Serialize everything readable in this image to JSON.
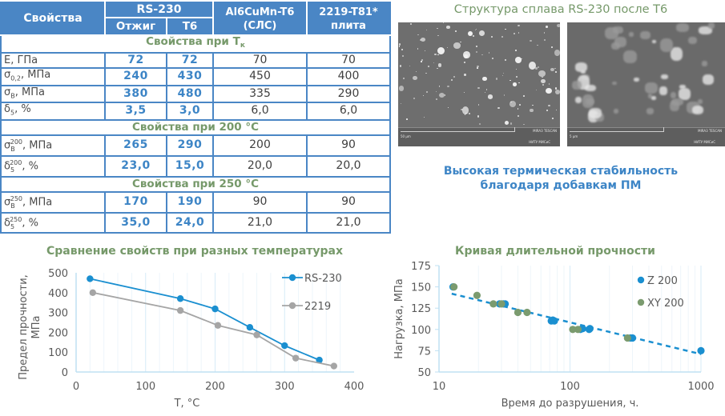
{
  "table": {
    "header": {
      "properties": "Свойства",
      "rs230": "RS-230",
      "annealed": "Отжиг",
      "t6": "Т6",
      "al6cumn_line1": "Al6CuMn-T6",
      "al6cumn_line2": "(СЛС)",
      "alloy2219_line1": "2219-T81*",
      "alloy2219_line2": "плита"
    },
    "sections": [
      {
        "title": "Свойства при T",
        "title_sub": "к",
        "rows": [
          {
            "label": "E, ГПа",
            "annealed": "72",
            "t6": "72",
            "al6cumn": "70",
            "a2219": "70"
          },
          {
            "sym": "σ",
            "sub": "0,2",
            "sup": "",
            "unit": ", МПа",
            "annealed": "240",
            "t6": "430",
            "al6cumn": "450",
            "a2219": "400"
          },
          {
            "sym": "σ",
            "sub": "В",
            "sup": "",
            "unit": ", МПа",
            "annealed": "380",
            "t6": "480",
            "al6cumn": "335",
            "a2219": "290"
          },
          {
            "sym": "δ",
            "sub": "5",
            "sup": "",
            "unit": ", %",
            "annealed": "3,5",
            "t6": "3,0",
            "al6cumn": "6,0",
            "a2219": "6,0"
          }
        ]
      },
      {
        "title": "Свойства при 200 °С",
        "rows": [
          {
            "sym": "σ",
            "sub": "В",
            "sup": "200",
            "unit": ", МПа",
            "annealed": "265",
            "t6": "290",
            "al6cumn": "200",
            "a2219": "90"
          },
          {
            "sym": "δ",
            "sub": "5",
            "sup": "200",
            "unit": ", %",
            "annealed": "23,0",
            "t6": "15,0",
            "al6cumn": "20,0",
            "a2219": "20,0"
          }
        ]
      },
      {
        "title": "Свойства при 250 °С",
        "rows": [
          {
            "sym": "σ",
            "sub": "В",
            "sup": "250",
            "unit": ", МПа",
            "annealed": "170",
            "t6": "190",
            "al6cumn": "90",
            "a2219": "90"
          },
          {
            "sym": "δ",
            "sub": "5",
            "sup": "250",
            "unit": ", %",
            "annealed": "35,0",
            "t6": "24,0",
            "al6cumn": "21,0",
            "a2219": "21,0"
          }
        ]
      }
    ]
  },
  "microstructure": {
    "title": "Структура сплава RS-230 после Т6",
    "image1": {
      "scale": "50 μm",
      "brand": "MIRA3 TESCAN",
      "org": "НИТУ МИСиС"
    },
    "image2": {
      "scale": "5 μm",
      "brand": "MIRA3 TESCAN",
      "org": "НИТУ МИСиС"
    }
  },
  "stability_text": {
    "line1": "Высокая термическая стабильность",
    "line2": "благодаря добавкам ПМ"
  },
  "colors": {
    "header_blue": "#4a86c5",
    "rs_blue": "#3d85c6",
    "section_green": "#76996a",
    "series_blue": "#1a8fd0",
    "series_gray": "#a5a5a5",
    "series_green": "#7b9b6f"
  },
  "chart_data": [
    {
      "type": "line",
      "title": "Сравнение свойств при разных температурах",
      "xlabel": "T, °C",
      "ylabel": "Предел прочности, МПа",
      "xlim": [
        0,
        400
      ],
      "ylim": [
        0,
        500
      ],
      "xticks": [
        0,
        100,
        200,
        300,
        400
      ],
      "yticks": [
        0,
        100,
        200,
        300,
        400,
        500
      ],
      "grid": "vertical minor",
      "legend_position": "upper right",
      "series": [
        {
          "name": "RS-230",
          "x": [
            20,
            150,
            200,
            250,
            300,
            350
          ],
          "y": [
            470,
            370,
            318,
            225,
            133,
            60
          ]
        },
        {
          "name": "2219",
          "x": [
            24,
            150,
            204,
            260,
            316,
            371
          ],
          "y": [
            400,
            310,
            235,
            187,
            70,
            30
          ]
        }
      ]
    },
    {
      "type": "scatter",
      "title": "Кривая длительной прочности",
      "xlabel": "Время до разрушения, ч.",
      "ylabel": "Нагрузка, МПа",
      "xscale": "log",
      "xlim": [
        10,
        1000
      ],
      "ylim": [
        50,
        175
      ],
      "xticks": [
        10,
        100,
        1000
      ],
      "yticks": [
        50,
        75,
        100,
        125,
        150,
        175
      ],
      "legend_position": "upper right",
      "series": [
        {
          "name": "Z 200",
          "x": [
            12.8,
            29,
            31,
            32,
            72,
            74,
            76,
            120,
            125,
            140,
            142,
            290,
            300,
            1000
          ],
          "y": [
            150,
            130,
            130,
            130,
            110,
            111,
            110,
            100,
            101,
            100,
            101,
            90,
            90,
            75
          ]
        },
        {
          "name": "XY 200",
          "x": [
            13,
            19.5,
            26,
            30,
            40,
            47,
            105,
            115,
            275
          ],
          "y": [
            150,
            140,
            130,
            130,
            120,
            120,
            100,
            100,
            90
          ]
        }
      ],
      "trendline": {
        "style": "dashed",
        "color": "#1a8fd0",
        "x": [
          12.5,
          1000
        ],
        "y": [
          142,
          71
        ]
      }
    }
  ]
}
